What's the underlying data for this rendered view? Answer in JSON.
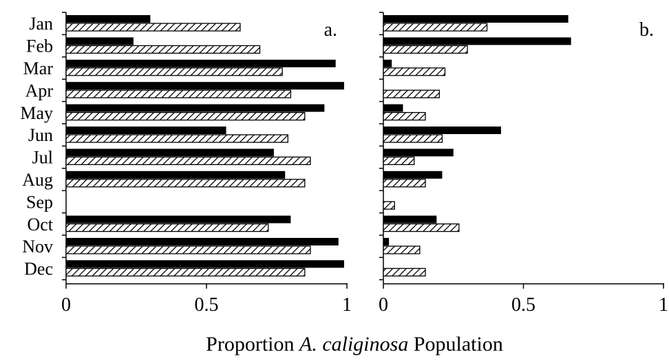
{
  "chart_data": {
    "type": "bar",
    "orientation": "horizontal",
    "categories": [
      "Jan",
      "Feb",
      "Mar",
      "Apr",
      "May",
      "Jun",
      "Jul",
      "Aug",
      "Sep",
      "Oct",
      "Nov",
      "Dec"
    ],
    "xlabel": {
      "prefix": "Proportion ",
      "species": "A. caliginosa",
      "suffix": " Population"
    },
    "xlim": [
      0,
      1
    ],
    "x_ticks": [
      "0",
      "0.5",
      "1"
    ],
    "bar_styles": [
      "solid-black",
      "diagonal-hatch"
    ],
    "panels": [
      {
        "label": "a.",
        "series": [
          {
            "style": "solid-black",
            "values": [
              0.3,
              0.24,
              0.96,
              0.99,
              0.92,
              0.57,
              0.74,
              0.78,
              0.0,
              0.8,
              0.97,
              0.99
            ]
          },
          {
            "style": "diagonal-hatch",
            "values": [
              0.62,
              0.69,
              0.77,
              0.8,
              0.85,
              0.79,
              0.87,
              0.85,
              0.0,
              0.72,
              0.87,
              0.85
            ]
          }
        ]
      },
      {
        "label": "b.",
        "series": [
          {
            "style": "solid-black",
            "values": [
              0.66,
              0.67,
              0.03,
              0.0,
              0.07,
              0.42,
              0.25,
              0.21,
              0.0,
              0.19,
              0.02,
              0.0
            ]
          },
          {
            "style": "diagonal-hatch",
            "values": [
              0.37,
              0.3,
              0.22,
              0.2,
              0.15,
              0.21,
              0.11,
              0.15,
              0.04,
              0.27,
              0.13,
              0.15
            ]
          }
        ]
      }
    ]
  }
}
